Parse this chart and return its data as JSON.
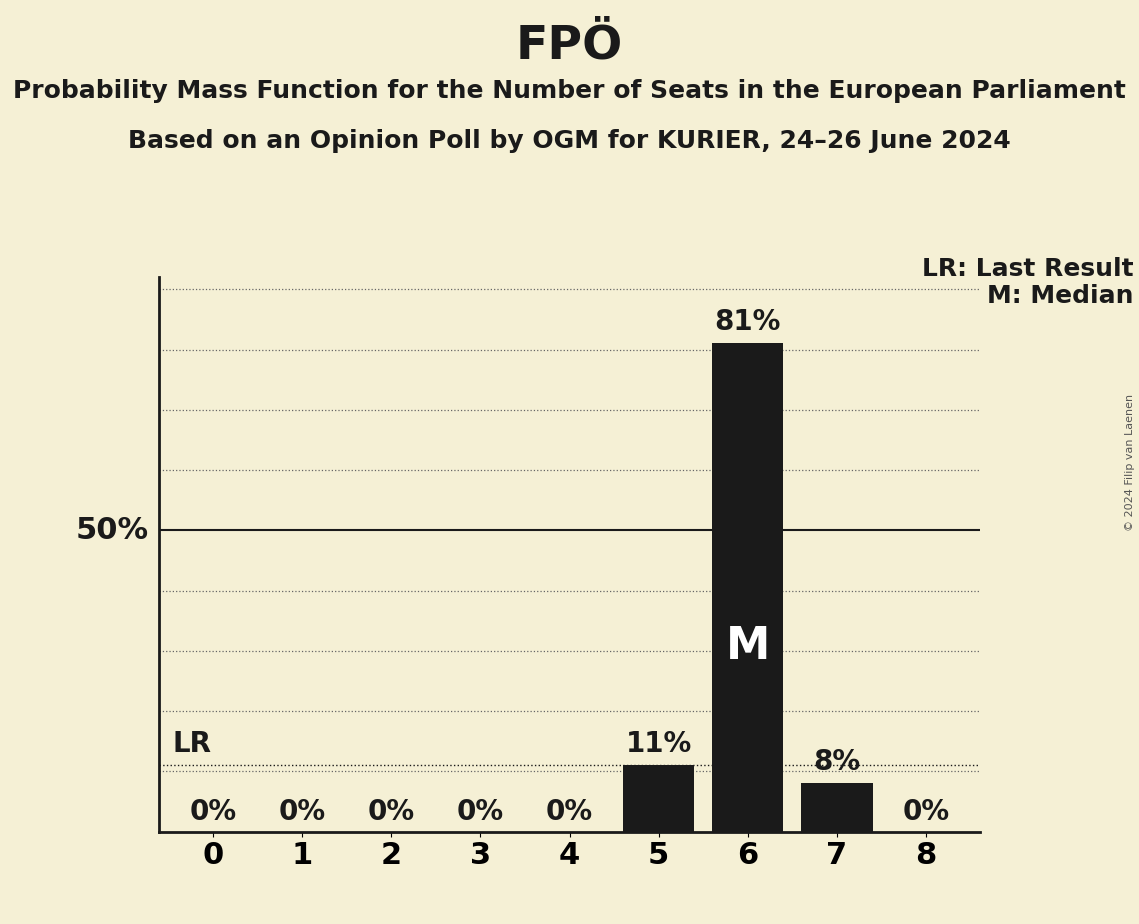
{
  "title": "FPÖ",
  "subtitle1": "Probability Mass Function for the Number of Seats in the European Parliament",
  "subtitle2": "Based on an Opinion Poll by OGM for KURIER, 24–26 June 2024",
  "copyright": "© 2024 Filip van Laenen",
  "categories": [
    0,
    1,
    2,
    3,
    4,
    5,
    6,
    7,
    8
  ],
  "values": [
    0,
    0,
    0,
    0,
    0,
    11,
    81,
    8,
    0
  ],
  "bar_color": "#1a1a1a",
  "background_color": "#f5f0d5",
  "median_seat": 6,
  "last_result_seat": 5,
  "last_result_value": 11,
  "ylim": [
    0,
    92
  ],
  "grid_values": [
    10,
    20,
    30,
    40,
    50,
    60,
    70,
    80,
    90
  ],
  "legend_lr": "LR: Last Result",
  "legend_m": "M: Median",
  "title_fontsize": 34,
  "subtitle_fontsize": 18,
  "bar_label_fontsize": 20,
  "axis_tick_fontsize": 22,
  "ylabel_fontsize": 22,
  "legend_fontsize": 18,
  "median_label_fontsize": 32,
  "copyright_fontsize": 8
}
